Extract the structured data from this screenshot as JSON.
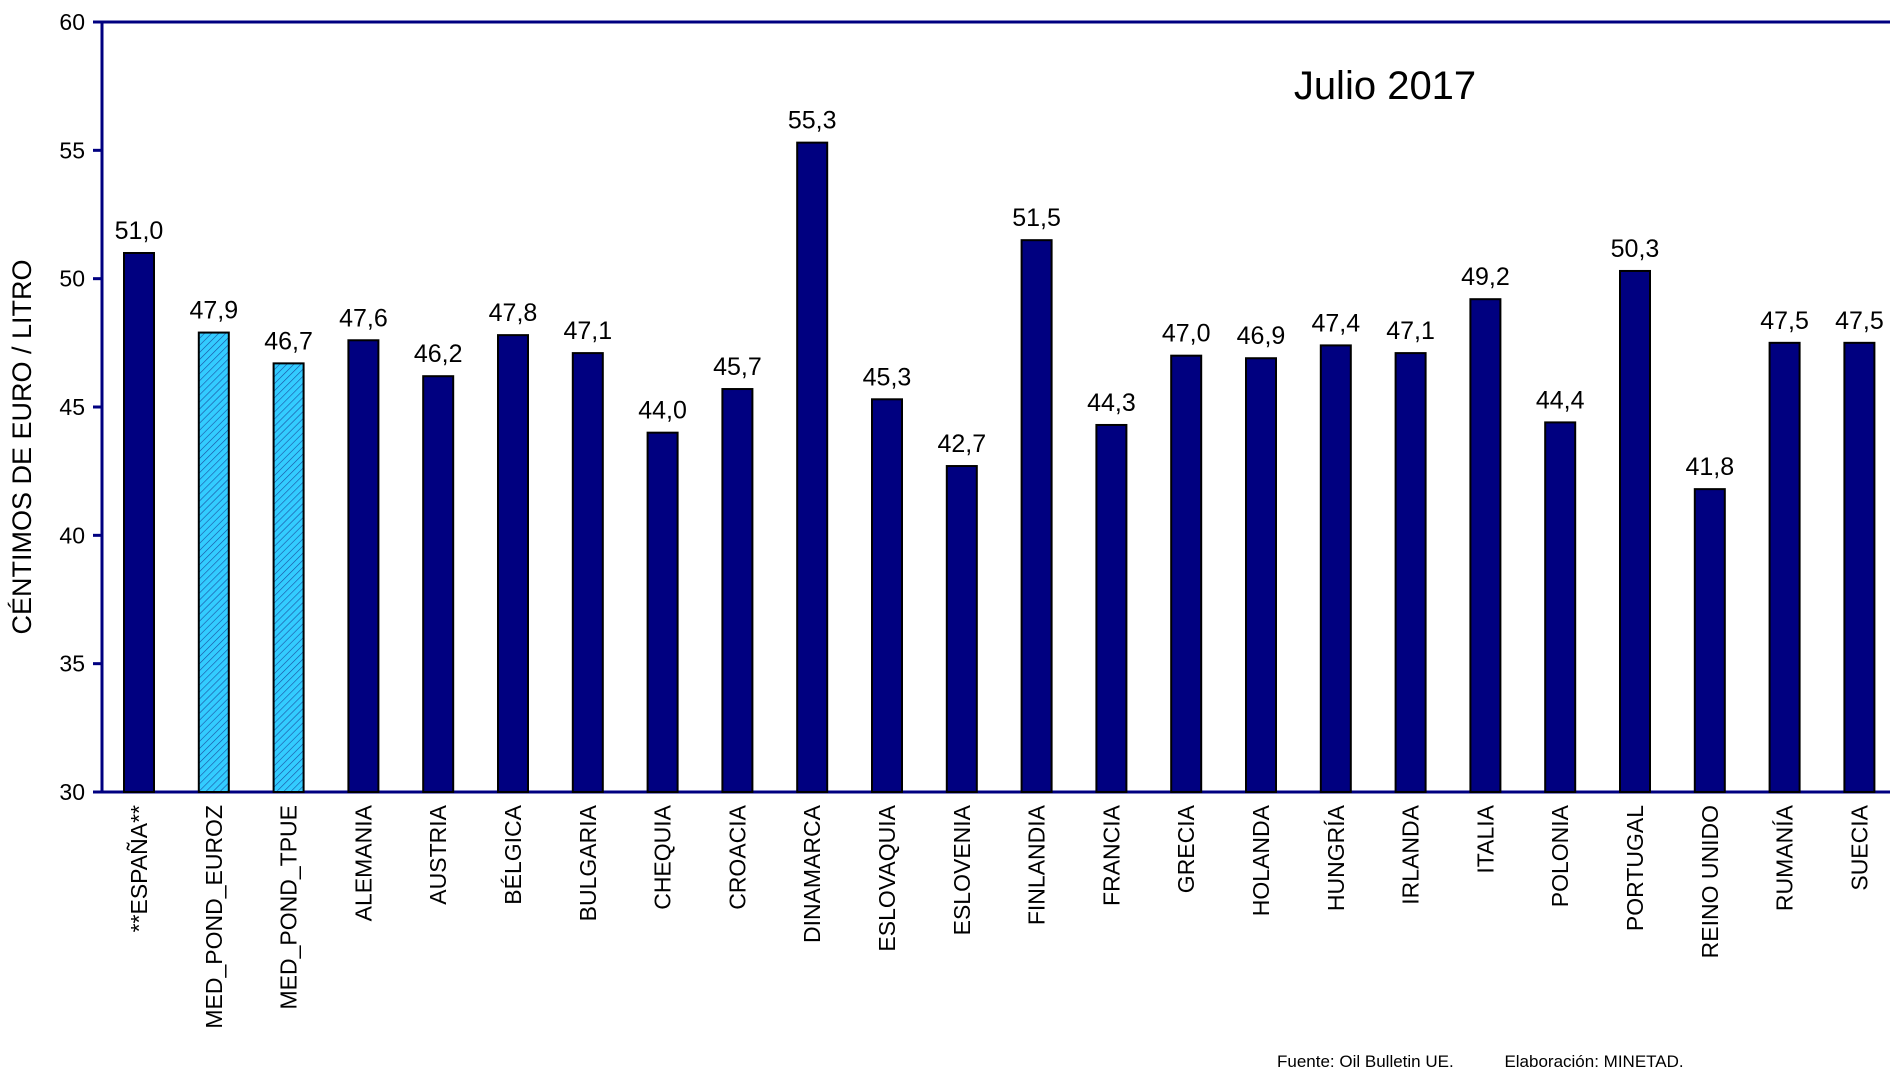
{
  "chart_data": {
    "type": "bar",
    "title": "Julio 2017",
    "ylabel": "CÉNTIMOS DE EURO / LITRO",
    "xlabel": "",
    "ylim": [
      30,
      60
    ],
    "yticks": [
      30,
      35,
      40,
      45,
      50,
      55,
      60
    ],
    "grid": false,
    "legend": "none",
    "categories": [
      "**ESPAÑA**",
      "MED_POND_EUROZ",
      "MED_POND_TPUE",
      "ALEMANIA",
      "AUSTRIA",
      "BÉLGICA",
      "BULGARIA",
      "CHEQUIA",
      "CROACIA",
      "DINAMARCA",
      "ESLOVAQUIA",
      "ESLOVENIA",
      "FINLANDIA",
      "FRANCIA",
      "GRECIA",
      "HOLANDA",
      "HUNGRÍA",
      "IRLANDA",
      "ITALIA",
      "POLONIA",
      "PORTUGAL",
      "REINO UNIDO",
      "RUMANÍA",
      "SUECIA"
    ],
    "values": [
      51.0,
      47.9,
      46.7,
      47.6,
      46.2,
      47.8,
      47.1,
      44.0,
      45.7,
      55.3,
      45.3,
      42.7,
      51.5,
      44.3,
      47.0,
      46.9,
      47.4,
      47.1,
      49.2,
      44.4,
      50.3,
      41.8,
      47.5,
      47.5
    ],
    "value_labels": [
      "51,0",
      "47,9",
      "46,7",
      "47,6",
      "46,2",
      "47,8",
      "47,1",
      "44,0",
      "45,7",
      "55,3",
      "45,3",
      "42,7",
      "51,5",
      "44,3",
      "47,0",
      "46,9",
      "47,4",
      "47,1",
      "49,2",
      "44,4",
      "50,3",
      "41,8",
      "47,5",
      "47,5"
    ],
    "highlighted": [
      "MED_POND_EUROZ",
      "MED_POND_TPUE"
    ],
    "colors": {
      "bar": "#000080",
      "highlight": "#33CCFF",
      "axis": "#000080"
    }
  },
  "footer": {
    "source": "Fuente: Oil Bulletin UE.",
    "credit": "Elaboración: MINETAD."
  }
}
